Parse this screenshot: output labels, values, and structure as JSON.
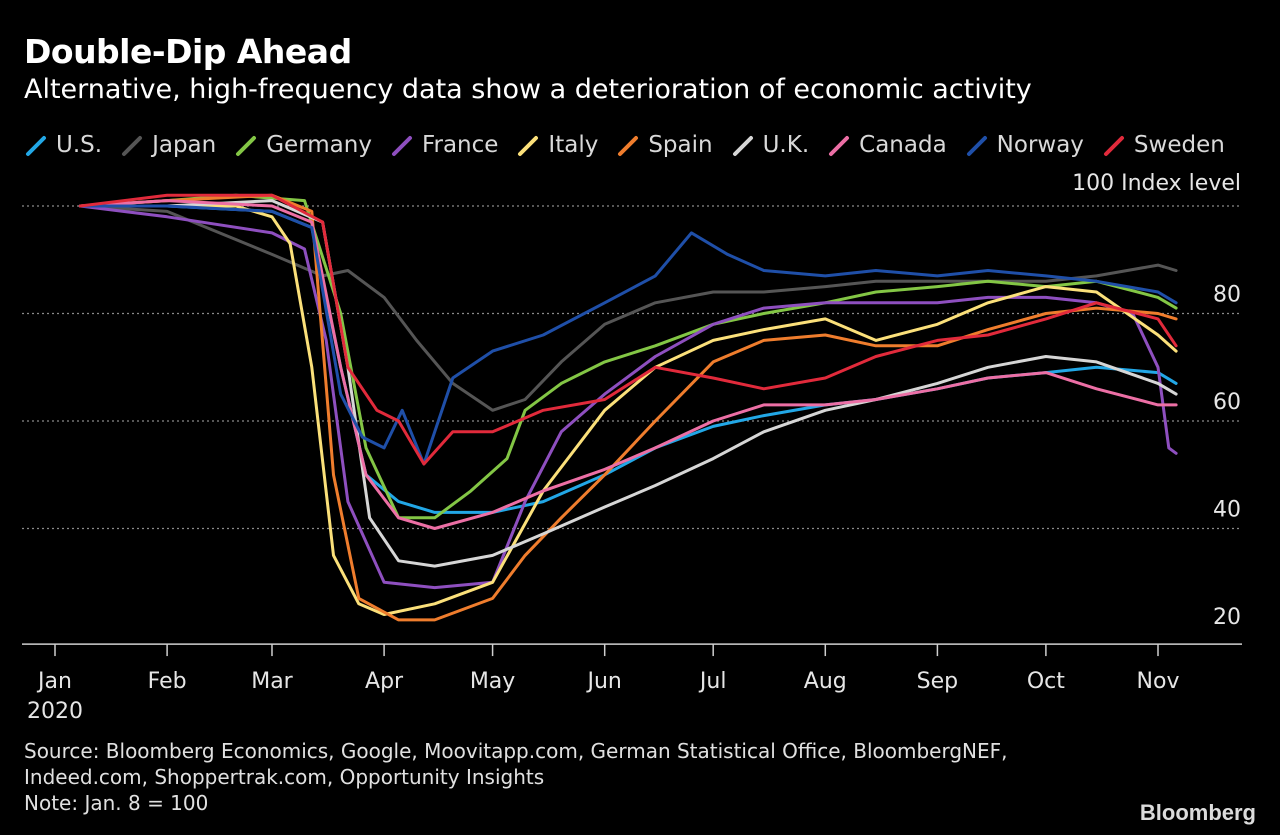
{
  "header": {
    "title": "Double-Dip Ahead",
    "subtitle": "Alternative, high-frequency data show a deterioration of economic activity"
  },
  "footer": {
    "source_line1": "Source: Bloomberg Economics, Google, Moovitapp.com, German Statistical Office, BloombergNEF,",
    "source_line2": "Indeed.com, Shoppertrak.com, Opportunity Insights",
    "note": "Note: Jan. 8 = 100",
    "brand": "Bloomberg"
  },
  "chart_data": {
    "type": "line",
    "title": "Double-Dip Ahead",
    "subtitle": "Alternative, high-frequency data show a deterioration of economic activity",
    "unit_label": "100 Index level",
    "x_ticks": [
      "Jan",
      "Feb",
      "Mar",
      "Apr",
      "May",
      "Jun",
      "Jul",
      "Aug",
      "Sep",
      "Oct",
      "Nov"
    ],
    "x_year_label": "2020",
    "x_range": [
      "2020-01-01",
      "2020-11-06"
    ],
    "ylim": [
      18,
      103
    ],
    "y_ticks": [
      20,
      40,
      60,
      80
    ],
    "grid": "horizontal dotted at 40, 60, 80, 100",
    "legend_position": "top",
    "series": [
      {
        "name": "U.S.",
        "color": "#22a7e6",
        "points": [
          [
            "2020-01-08",
            100
          ],
          [
            "2020-02-01",
            100
          ],
          [
            "2020-03-01",
            99
          ],
          [
            "2020-03-12",
            96
          ],
          [
            "2020-03-20",
            70
          ],
          [
            "2020-03-27",
            50
          ],
          [
            "2020-04-05",
            45
          ],
          [
            "2020-04-15",
            43
          ],
          [
            "2020-05-01",
            43
          ],
          [
            "2020-05-15",
            45
          ],
          [
            "2020-06-01",
            50
          ],
          [
            "2020-06-15",
            55
          ],
          [
            "2020-07-01",
            59
          ],
          [
            "2020-07-15",
            61
          ],
          [
            "2020-08-01",
            63
          ],
          [
            "2020-08-15",
            64
          ],
          [
            "2020-09-01",
            66
          ],
          [
            "2020-09-15",
            68
          ],
          [
            "2020-10-01",
            69
          ],
          [
            "2020-10-15",
            70
          ],
          [
            "2020-11-01",
            69
          ],
          [
            "2020-11-06",
            67
          ]
        ]
      },
      {
        "name": "Japan",
        "color": "#555555",
        "points": [
          [
            "2020-01-08",
            100
          ],
          [
            "2020-02-01",
            99
          ],
          [
            "2020-03-01",
            91
          ],
          [
            "2020-03-15",
            87
          ],
          [
            "2020-03-22",
            88
          ],
          [
            "2020-04-01",
            83
          ],
          [
            "2020-04-10",
            75
          ],
          [
            "2020-04-20",
            67
          ],
          [
            "2020-05-01",
            62
          ],
          [
            "2020-05-10",
            64
          ],
          [
            "2020-05-20",
            71
          ],
          [
            "2020-06-01",
            78
          ],
          [
            "2020-06-15",
            82
          ],
          [
            "2020-07-01",
            84
          ],
          [
            "2020-07-15",
            84
          ],
          [
            "2020-08-01",
            85
          ],
          [
            "2020-08-15",
            86
          ],
          [
            "2020-09-01",
            86
          ],
          [
            "2020-09-15",
            86
          ],
          [
            "2020-10-01",
            86
          ],
          [
            "2020-10-15",
            87
          ],
          [
            "2020-11-01",
            89
          ],
          [
            "2020-11-06",
            88
          ]
        ]
      },
      {
        "name": "Germany",
        "color": "#83c645",
        "points": [
          [
            "2020-01-08",
            100
          ],
          [
            "2020-02-01",
            101
          ],
          [
            "2020-02-20",
            102
          ],
          [
            "2020-03-10",
            101
          ],
          [
            "2020-03-20",
            80
          ],
          [
            "2020-03-27",
            55
          ],
          [
            "2020-04-05",
            42
          ],
          [
            "2020-04-15",
            42
          ],
          [
            "2020-04-25",
            47
          ],
          [
            "2020-05-05",
            53
          ],
          [
            "2020-05-10",
            62
          ],
          [
            "2020-05-20",
            67
          ],
          [
            "2020-06-01",
            71
          ],
          [
            "2020-06-15",
            74
          ],
          [
            "2020-07-01",
            78
          ],
          [
            "2020-07-15",
            80
          ],
          [
            "2020-08-01",
            82
          ],
          [
            "2020-08-15",
            84
          ],
          [
            "2020-09-01",
            85
          ],
          [
            "2020-09-15",
            86
          ],
          [
            "2020-10-01",
            85
          ],
          [
            "2020-10-15",
            86
          ],
          [
            "2020-11-01",
            83
          ],
          [
            "2020-11-06",
            81
          ]
        ]
      },
      {
        "name": "France",
        "color": "#8e4fbf",
        "points": [
          [
            "2020-01-08",
            100
          ],
          [
            "2020-02-01",
            98
          ],
          [
            "2020-03-01",
            95
          ],
          [
            "2020-03-10",
            92
          ],
          [
            "2020-03-16",
            75
          ],
          [
            "2020-03-22",
            45
          ],
          [
            "2020-04-01",
            30
          ],
          [
            "2020-04-15",
            29
          ],
          [
            "2020-05-01",
            30
          ],
          [
            "2020-05-10",
            45
          ],
          [
            "2020-05-20",
            58
          ],
          [
            "2020-06-01",
            65
          ],
          [
            "2020-06-15",
            72
          ],
          [
            "2020-07-01",
            78
          ],
          [
            "2020-07-15",
            81
          ],
          [
            "2020-08-01",
            82
          ],
          [
            "2020-08-15",
            82
          ],
          [
            "2020-09-01",
            82
          ],
          [
            "2020-09-15",
            83
          ],
          [
            "2020-10-01",
            83
          ],
          [
            "2020-10-15",
            82
          ],
          [
            "2020-10-25",
            80
          ],
          [
            "2020-11-01",
            70
          ],
          [
            "2020-11-04",
            55
          ],
          [
            "2020-11-06",
            54
          ]
        ]
      },
      {
        "name": "Italy",
        "color": "#fbe07a",
        "points": [
          [
            "2020-01-08",
            100
          ],
          [
            "2020-02-01",
            100
          ],
          [
            "2020-02-20",
            100
          ],
          [
            "2020-03-01",
            98
          ],
          [
            "2020-03-06",
            93
          ],
          [
            "2020-03-12",
            70
          ],
          [
            "2020-03-18",
            35
          ],
          [
            "2020-03-25",
            26
          ],
          [
            "2020-04-01",
            24
          ],
          [
            "2020-04-15",
            26
          ],
          [
            "2020-05-01",
            30
          ],
          [
            "2020-05-15",
            47
          ],
          [
            "2020-06-01",
            62
          ],
          [
            "2020-06-15",
            70
          ],
          [
            "2020-07-01",
            75
          ],
          [
            "2020-07-15",
            77
          ],
          [
            "2020-08-01",
            79
          ],
          [
            "2020-08-15",
            75
          ],
          [
            "2020-09-01",
            78
          ],
          [
            "2020-09-15",
            82
          ],
          [
            "2020-10-01",
            85
          ],
          [
            "2020-10-15",
            84
          ],
          [
            "2020-11-01",
            76
          ],
          [
            "2020-11-06",
            73
          ]
        ]
      },
      {
        "name": "Spain",
        "color": "#ef7d2d",
        "points": [
          [
            "2020-01-08",
            100
          ],
          [
            "2020-02-01",
            101
          ],
          [
            "2020-03-01",
            102
          ],
          [
            "2020-03-12",
            99
          ],
          [
            "2020-03-18",
            50
          ],
          [
            "2020-03-25",
            27
          ],
          [
            "2020-04-05",
            23
          ],
          [
            "2020-04-15",
            23
          ],
          [
            "2020-05-01",
            27
          ],
          [
            "2020-05-10",
            35
          ],
          [
            "2020-05-20",
            42
          ],
          [
            "2020-06-01",
            50
          ],
          [
            "2020-06-15",
            60
          ],
          [
            "2020-07-01",
            71
          ],
          [
            "2020-07-15",
            75
          ],
          [
            "2020-08-01",
            76
          ],
          [
            "2020-08-15",
            74
          ],
          [
            "2020-09-01",
            74
          ],
          [
            "2020-09-15",
            77
          ],
          [
            "2020-10-01",
            80
          ],
          [
            "2020-10-15",
            81
          ],
          [
            "2020-11-01",
            80
          ],
          [
            "2020-11-06",
            79
          ]
        ]
      },
      {
        "name": "U.K.",
        "color": "#d6d6d6",
        "points": [
          [
            "2020-01-08",
            100
          ],
          [
            "2020-02-01",
            100
          ],
          [
            "2020-03-01",
            101
          ],
          [
            "2020-03-15",
            97
          ],
          [
            "2020-03-22",
            70
          ],
          [
            "2020-03-28",
            42
          ],
          [
            "2020-04-05",
            34
          ],
          [
            "2020-04-15",
            33
          ],
          [
            "2020-05-01",
            35
          ],
          [
            "2020-05-15",
            39
          ],
          [
            "2020-06-01",
            44
          ],
          [
            "2020-06-15",
            48
          ],
          [
            "2020-07-01",
            53
          ],
          [
            "2020-07-15",
            58
          ],
          [
            "2020-08-01",
            62
          ],
          [
            "2020-08-15",
            64
          ],
          [
            "2020-09-01",
            67
          ],
          [
            "2020-09-15",
            70
          ],
          [
            "2020-10-01",
            72
          ],
          [
            "2020-10-15",
            71
          ],
          [
            "2020-11-01",
            67
          ],
          [
            "2020-11-06",
            65
          ]
        ]
      },
      {
        "name": "Canada",
        "color": "#ec6fa5",
        "points": [
          [
            "2020-01-08",
            100
          ],
          [
            "2020-02-01",
            101
          ],
          [
            "2020-03-01",
            100
          ],
          [
            "2020-03-12",
            97
          ],
          [
            "2020-03-20",
            70
          ],
          [
            "2020-03-27",
            50
          ],
          [
            "2020-04-05",
            42
          ],
          [
            "2020-04-15",
            40
          ],
          [
            "2020-05-01",
            43
          ],
          [
            "2020-05-15",
            47
          ],
          [
            "2020-06-01",
            51
          ],
          [
            "2020-06-15",
            55
          ],
          [
            "2020-07-01",
            60
          ],
          [
            "2020-07-15",
            63
          ],
          [
            "2020-08-01",
            63
          ],
          [
            "2020-08-15",
            64
          ],
          [
            "2020-09-01",
            66
          ],
          [
            "2020-09-15",
            68
          ],
          [
            "2020-10-01",
            69
          ],
          [
            "2020-10-15",
            66
          ],
          [
            "2020-11-01",
            63
          ],
          [
            "2020-11-06",
            63
          ]
        ]
      },
      {
        "name": "Norway",
        "color": "#1f4fa8",
        "points": [
          [
            "2020-01-08",
            100
          ],
          [
            "2020-02-01",
            100
          ],
          [
            "2020-03-01",
            99
          ],
          [
            "2020-03-12",
            96
          ],
          [
            "2020-03-20",
            65
          ],
          [
            "2020-03-26",
            57
          ],
          [
            "2020-04-01",
            55
          ],
          [
            "2020-04-06",
            62
          ],
          [
            "2020-04-12",
            52
          ],
          [
            "2020-04-20",
            68
          ],
          [
            "2020-05-01",
            73
          ],
          [
            "2020-05-15",
            76
          ],
          [
            "2020-06-01",
            82
          ],
          [
            "2020-06-15",
            87
          ],
          [
            "2020-06-25",
            95
          ],
          [
            "2020-07-05",
            91
          ],
          [
            "2020-07-15",
            88
          ],
          [
            "2020-08-01",
            87
          ],
          [
            "2020-08-15",
            88
          ],
          [
            "2020-09-01",
            87
          ],
          [
            "2020-09-15",
            88
          ],
          [
            "2020-10-01",
            87
          ],
          [
            "2020-10-15",
            86
          ],
          [
            "2020-11-01",
            84
          ],
          [
            "2020-11-06",
            82
          ]
        ]
      },
      {
        "name": "Sweden",
        "color": "#e12a3b",
        "points": [
          [
            "2020-01-08",
            100
          ],
          [
            "2020-02-01",
            102
          ],
          [
            "2020-03-01",
            102
          ],
          [
            "2020-03-15",
            97
          ],
          [
            "2020-03-22",
            70
          ],
          [
            "2020-03-30",
            62
          ],
          [
            "2020-04-05",
            60
          ],
          [
            "2020-04-12",
            52
          ],
          [
            "2020-04-20",
            58
          ],
          [
            "2020-05-01",
            58
          ],
          [
            "2020-05-15",
            62
          ],
          [
            "2020-06-01",
            64
          ],
          [
            "2020-06-15",
            70
          ],
          [
            "2020-07-01",
            68
          ],
          [
            "2020-07-15",
            66
          ],
          [
            "2020-08-01",
            68
          ],
          [
            "2020-08-15",
            72
          ],
          [
            "2020-09-01",
            75
          ],
          [
            "2020-09-15",
            76
          ],
          [
            "2020-10-01",
            79
          ],
          [
            "2020-10-15",
            82
          ],
          [
            "2020-11-01",
            79
          ],
          [
            "2020-11-06",
            74
          ]
        ]
      }
    ]
  }
}
